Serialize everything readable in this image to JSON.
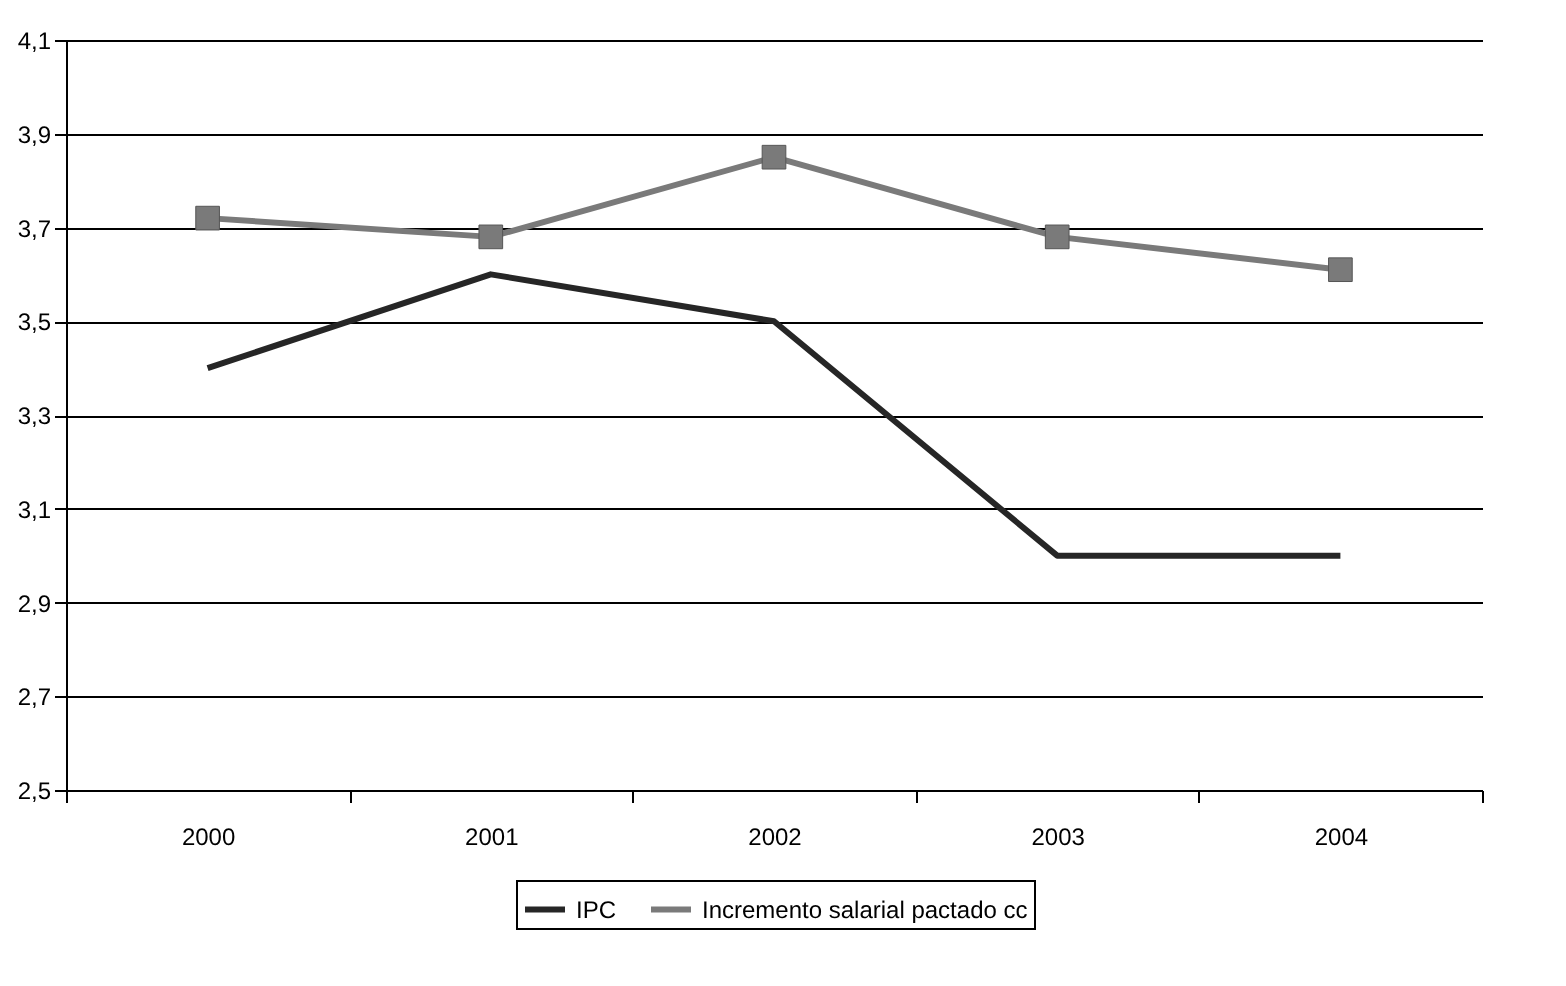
{
  "chart_data": {
    "type": "line",
    "categories": [
      "2000",
      "2001",
      "2002",
      "2003",
      "2004"
    ],
    "series": [
      {
        "name": "IPC",
        "color": "#262626",
        "values": [
          3.4,
          3.6,
          3.5,
          3.0,
          3.0
        ],
        "marker": "none"
      },
      {
        "name": "Incremento salarial pactado cc",
        "color": "#7a7a7a",
        "values": [
          3.72,
          3.68,
          3.85,
          3.68,
          3.61
        ],
        "marker": "square"
      }
    ],
    "ylim": [
      2.5,
      4.1
    ],
    "yticks": [
      {
        "value": 2.5,
        "label": "2,5"
      },
      {
        "value": 2.7,
        "label": "2,7"
      },
      {
        "value": 2.9,
        "label": "2,9"
      },
      {
        "value": 3.1,
        "label": "3,1"
      },
      {
        "value": 3.3,
        "label": "3,3"
      },
      {
        "value": 3.5,
        "label": "3,5"
      },
      {
        "value": 3.7,
        "label": "3,7"
      },
      {
        "value": 3.9,
        "label": "3,9"
      },
      {
        "value": 4.1,
        "label": "4,1"
      }
    ],
    "grid": "y",
    "legend": "bottom",
    "line_style": "solid"
  }
}
